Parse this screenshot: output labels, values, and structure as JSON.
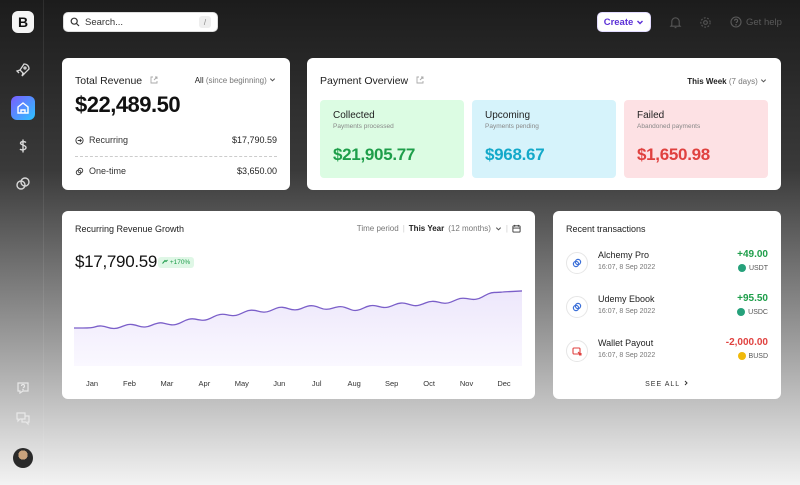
{
  "sidebar": {
    "logo": "B",
    "items": [
      {
        "name": "rocket",
        "icon": "rocket-icon",
        "active": false
      },
      {
        "name": "home",
        "icon": "home-icon",
        "active": true
      },
      {
        "name": "dollar",
        "icon": "dollar-icon",
        "active": false
      },
      {
        "name": "coins",
        "icon": "coins-icon",
        "active": false
      }
    ],
    "bottom_items": [
      {
        "name": "help-chat",
        "icon": "question-chat-icon"
      },
      {
        "name": "messages",
        "icon": "messages-icon"
      }
    ]
  },
  "topbar": {
    "search_placeholder": "Search...",
    "search_shortcut": "/",
    "create_label": "Create",
    "help_label": "Get help"
  },
  "total_revenue": {
    "title": "Total Revenue",
    "filter_label": "All",
    "filter_muted": "(since beginning)",
    "amount": "$22,489.50",
    "rows": [
      {
        "label": "Recurring",
        "value": "$17,790.59"
      },
      {
        "label": "One-time",
        "value": "$3,650.00"
      }
    ]
  },
  "payment_overview": {
    "title": "Payment Overview",
    "filter_label": "This Week",
    "filter_muted": "(7 days)",
    "boxes": [
      {
        "title": "Collected",
        "subtitle": "Payments processed",
        "value": "$21,905.77",
        "bg": "#dcfce3",
        "color": "#1e9e4a"
      },
      {
        "title": "Upcoming",
        "subtitle": "Payments pending",
        "value": "$968.67",
        "bg": "#d6f3fb",
        "color": "#13a9c9"
      },
      {
        "title": "Failed",
        "subtitle": "Abandoned payments",
        "value": "$1,650.98",
        "bg": "#fde1e4",
        "color": "#e0413f"
      }
    ]
  },
  "growth": {
    "title": "Recurring Revenue Growth",
    "period_label": "Time period",
    "period_value": "This Year",
    "period_muted": "(12 months)",
    "amount": "$17,790.59",
    "badge": "+170%",
    "chart_data": {
      "type": "area",
      "x": [
        "Jan",
        "Feb",
        "Mar",
        "Apr",
        "May",
        "Jun",
        "Jul",
        "Aug",
        "Sep",
        "Oct",
        "Nov",
        "Dec"
      ],
      "series": [
        {
          "values": [
            40,
            42,
            44,
            50,
            56,
            60,
            62,
            60,
            64,
            66,
            70,
            78
          ]
        }
      ],
      "ylim": [
        0,
        100
      ],
      "grid": false,
      "color": "#7b5fc9"
    }
  },
  "transactions": {
    "title": "Recent transactions",
    "items": [
      {
        "name": "Alchemy Pro",
        "time": "16:07, 8 Sep 2022",
        "amount": "+49.00",
        "currency": "USDT",
        "positive": true,
        "icon": "link-icon",
        "coin_color": "#26a17b"
      },
      {
        "name": "Udemy Ebook",
        "time": "16:07, 8 Sep 2022",
        "amount": "+95.50",
        "currency": "USDC",
        "positive": true,
        "icon": "link-icon",
        "coin_color": "#26a17b"
      },
      {
        "name": "Wallet Payout",
        "time": "16:07, 8 Sep 2022",
        "amount": "-2,000.00",
        "currency": "BUSD",
        "positive": false,
        "icon": "payout-icon",
        "coin_color": "#f0b90b"
      }
    ],
    "see_all": "SEE ALL"
  }
}
